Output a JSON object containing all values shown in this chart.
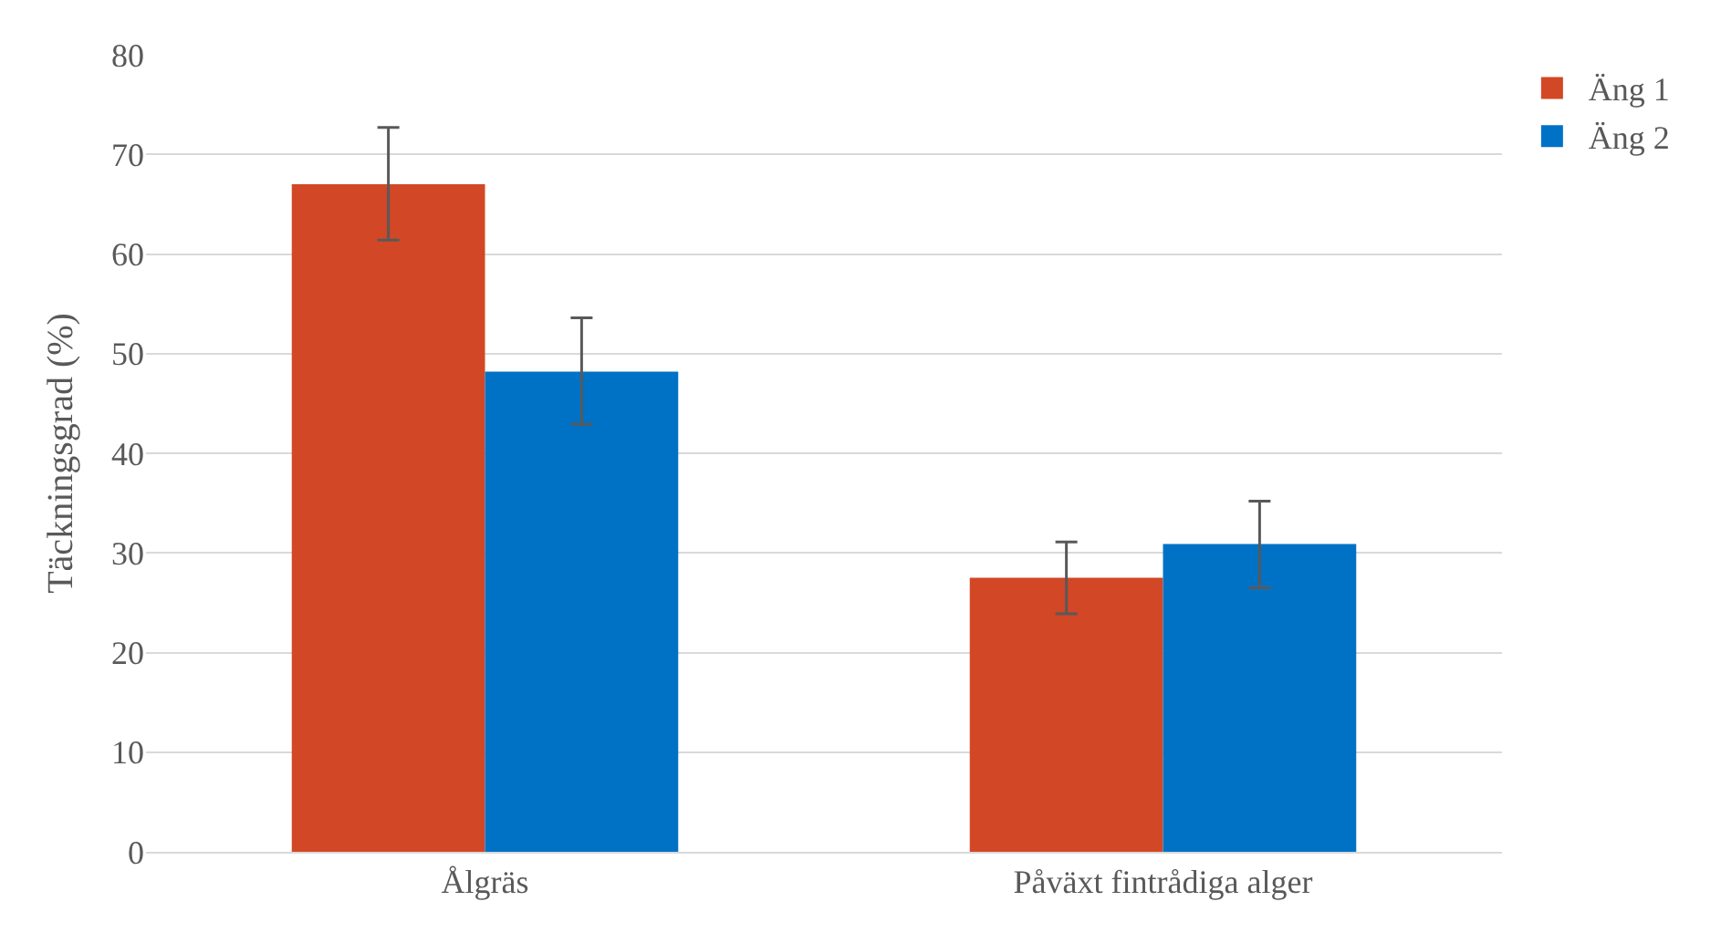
{
  "chart_data": {
    "type": "bar",
    "ylabel": "Täckningsgrad (%)",
    "categories": [
      "Ålgräs",
      "Påväxt fintrådiga alger"
    ],
    "series": [
      {
        "name": "Äng 1",
        "color": "#d24726",
        "values": [
          67.0,
          27.5
        ],
        "errors": [
          [
            61.4,
            72.7
          ],
          [
            23.9,
            31.1
          ]
        ]
      },
      {
        "name": "Äng 2",
        "color": "#0072c6",
        "values": [
          48.2,
          30.9
        ],
        "errors": [
          [
            42.9,
            53.6
          ],
          [
            26.5,
            35.2
          ]
        ]
      }
    ],
    "ylim": [
      0,
      80
    ],
    "yticks": [
      0,
      10,
      20,
      30,
      40,
      50,
      60,
      70,
      80
    ],
    "grid": "y",
    "legend": "top right"
  }
}
